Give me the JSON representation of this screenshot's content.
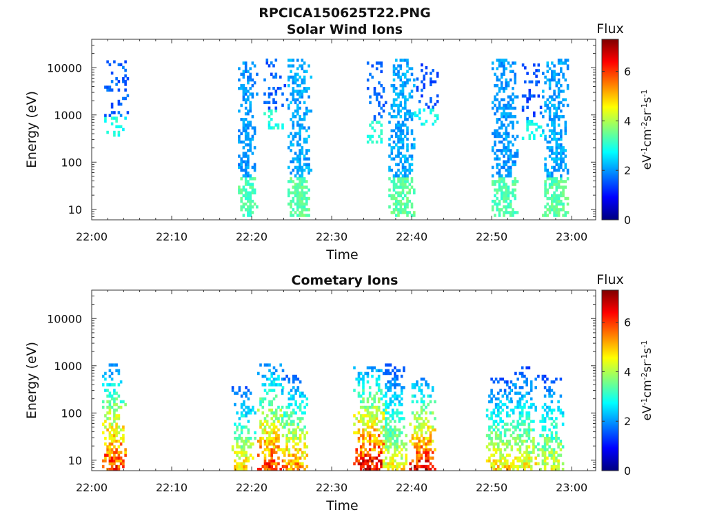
{
  "figure": {
    "title": "RPCICA150625T22.PNG"
  },
  "chart_data": [
    {
      "type": "heatmap",
      "title": "Solar Wind Ions",
      "xlabel": "Time",
      "ylabel": "Energy (eV)",
      "x_ticks": [
        "22:00",
        "22:10",
        "22:20",
        "22:30",
        "22:40",
        "22:50",
        "23:00"
      ],
      "x_range_minutes": [
        0,
        63
      ],
      "y_scale": "log",
      "y_ticks": [
        "10",
        "100",
        "1000",
        "10000"
      ],
      "y_range": [
        6,
        40000
      ],
      "colorbar": {
        "title": "Flux",
        "label": "eV-1cm-2sr-1s-1",
        "ticks": [
          "0",
          "2",
          "4",
          "6"
        ],
        "range": [
          0,
          7.3
        ],
        "colormap": [
          "#00007f",
          "#0000ff",
          "#007fff",
          "#00ffff",
          "#7fff7f",
          "#ffff00",
          "#ff7f00",
          "#ff0000",
          "#7f0000"
        ]
      },
      "bursts": [
        {
          "t": 2.8,
          "w": 1.8,
          "emin": 350,
          "emax": 14000,
          "flux": 1.6,
          "density": 0.35
        },
        {
          "t": 19.3,
          "w": 1.3,
          "emin": 7,
          "emax": 12000,
          "flux": 2.0,
          "density": 0.75
        },
        {
          "t": 22.8,
          "w": 1.6,
          "emin": 500,
          "emax": 14000,
          "flux": 1.6,
          "density": 0.3
        },
        {
          "t": 25.8,
          "w": 1.6,
          "emin": 7,
          "emax": 14000,
          "flux": 2.1,
          "density": 0.75
        },
        {
          "t": 35.5,
          "w": 1.4,
          "emin": 250,
          "emax": 12000,
          "flux": 1.6,
          "density": 0.35
        },
        {
          "t": 38.6,
          "w": 1.8,
          "emin": 7,
          "emax": 14000,
          "flux": 2.1,
          "density": 0.75
        },
        {
          "t": 41.8,
          "w": 1.8,
          "emin": 600,
          "emax": 12000,
          "flux": 1.5,
          "density": 0.3
        },
        {
          "t": 51.5,
          "w": 1.8,
          "emin": 7,
          "emax": 14000,
          "flux": 2.0,
          "density": 0.75
        },
        {
          "t": 54.8,
          "w": 1.6,
          "emin": 300,
          "emax": 12000,
          "flux": 1.5,
          "density": 0.3
        },
        {
          "t": 57.8,
          "w": 1.8,
          "emin": 7,
          "emax": 14000,
          "flux": 2.1,
          "density": 0.75
        }
      ]
    },
    {
      "type": "heatmap",
      "title": "Cometary Ions",
      "xlabel": "Time",
      "ylabel": "Energy (eV)",
      "x_ticks": [
        "22:00",
        "22:10",
        "22:20",
        "22:30",
        "22:40",
        "22:50",
        "23:00"
      ],
      "x_range_minutes": [
        0,
        63
      ],
      "y_scale": "log",
      "y_ticks": [
        "10",
        "100",
        "1000",
        "10000"
      ],
      "y_range": [
        6,
        40000
      ],
      "colorbar": {
        "title": "Flux",
        "label": "eV-1cm-2sr-1s-1",
        "ticks": [
          "0",
          "2",
          "4",
          "6"
        ],
        "range": [
          0,
          7.3
        ],
        "colormap": [
          "#00007f",
          "#0000ff",
          "#007fff",
          "#00ffff",
          "#7fff7f",
          "#ffff00",
          "#ff7f00",
          "#ff0000",
          "#7f0000"
        ]
      },
      "bursts": [
        {
          "t": 2.6,
          "w": 1.6,
          "emin": 6,
          "emax": 1000,
          "flux": 6.2,
          "density": 0.7
        },
        {
          "t": 18.8,
          "w": 1.6,
          "emin": 6,
          "emax": 350,
          "flux": 4.8,
          "density": 0.65
        },
        {
          "t": 22.2,
          "w": 1.8,
          "emin": 6,
          "emax": 1100,
          "flux": 6.0,
          "density": 0.7
        },
        {
          "t": 25.2,
          "w": 1.8,
          "emin": 6,
          "emax": 600,
          "flux": 5.4,
          "density": 0.65
        },
        {
          "t": 34.6,
          "w": 2.2,
          "emin": 6,
          "emax": 900,
          "flux": 6.6,
          "density": 0.75
        },
        {
          "t": 37.6,
          "w": 1.8,
          "emin": 6,
          "emax": 1000,
          "flux": 4.6,
          "density": 0.7
        },
        {
          "t": 41.2,
          "w": 1.8,
          "emin": 6,
          "emax": 500,
          "flux": 6.4,
          "density": 0.7
        },
        {
          "t": 50.8,
          "w": 1.8,
          "emin": 6,
          "emax": 500,
          "flux": 4.8,
          "density": 0.65
        },
        {
          "t": 53.8,
          "w": 1.8,
          "emin": 6,
          "emax": 900,
          "flux": 4.6,
          "density": 0.65
        },
        {
          "t": 57.2,
          "w": 1.8,
          "emin": 6,
          "emax": 600,
          "flux": 4.4,
          "density": 0.65
        }
      ]
    }
  ]
}
